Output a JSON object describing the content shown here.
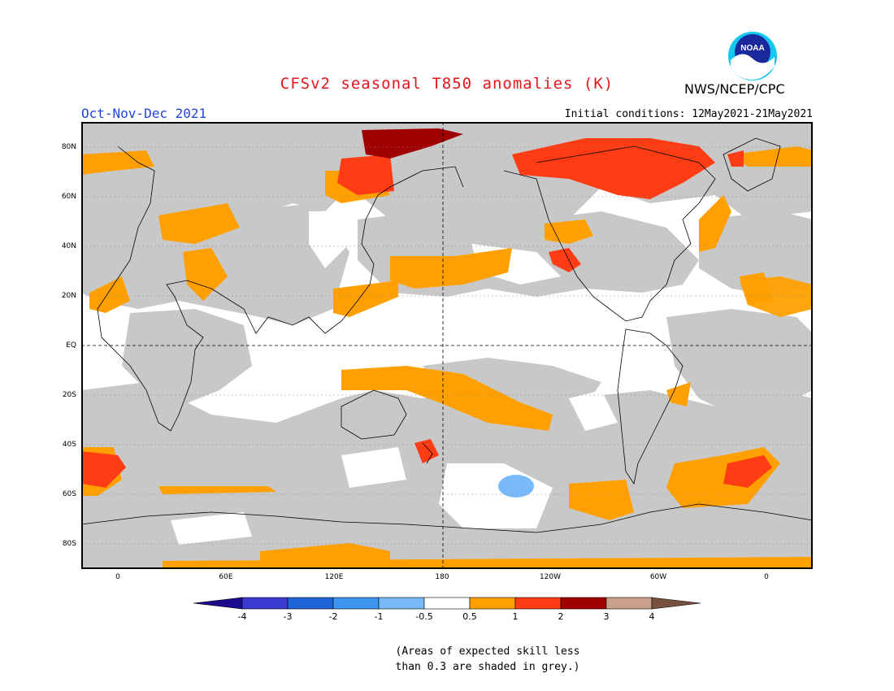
{
  "title": "CFSv2 seasonal T850 anomalies (K)",
  "season": "Oct-Nov-Dec 2021",
  "initial_conditions": "Initial conditions: 12May2021-21May2021",
  "agency": "NWS/NCEP/CPC",
  "logo_text": "NOAA",
  "lat_labels": [
    "80N",
    "60N",
    "40N",
    "20N",
    "EQ",
    "20S",
    "40S",
    "60S",
    "80S"
  ],
  "lon_labels": [
    "0",
    "60E",
    "120E",
    "180",
    "120W",
    "60W",
    "0"
  ],
  "colorbar": {
    "labels": [
      "-4",
      "-3",
      "-2",
      "-1",
      "-0.5",
      "0.5",
      "1",
      "2",
      "3",
      "4"
    ],
    "colors": {
      "lt_minus4": "#1a0a8c",
      "m4_m3": "#3a3ad0",
      "m3_m2": "#1e64d8",
      "m2_m1": "#3c96f0",
      "m1_m05": "#78b9fa",
      "m05_05": "#ffffff",
      "p05_p1": "#ffa000",
      "p1_p2": "#ff3c14",
      "p2_p3": "#a00000",
      "p3_p4": "#c8a08c",
      "gt_4": "#785040"
    }
  },
  "skill_mask_color": "#c8c8c8",
  "note_line1": "(Areas of expected skill less",
  "note_line2": "than 0.3 are shaded in grey.)"
}
